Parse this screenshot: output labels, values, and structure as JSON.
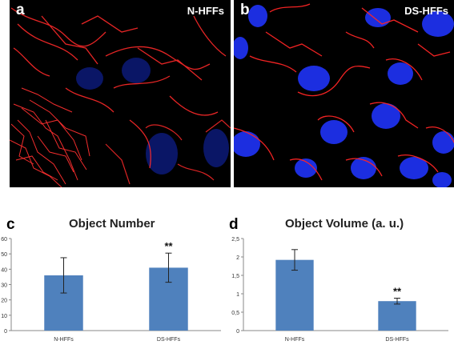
{
  "panels": [
    {
      "letter": "a",
      "label": "N-HFFs"
    },
    {
      "letter": "b",
      "label": "DS-HFFs"
    }
  ],
  "colors": {
    "bar": "#4f81bd",
    "mito": "#ff2020",
    "nucleus": "#1a2bd8"
  },
  "chart_data": [
    {
      "type": "bar",
      "panel": "c",
      "title": "Object Number",
      "categories": [
        "N-HFFs",
        "DS-HFFs"
      ],
      "values": [
        36,
        41
      ],
      "errors": [
        11.5,
        9.5
      ],
      "significance": [
        "",
        "**"
      ],
      "ylim": [
        0,
        60
      ],
      "yticks": [
        "0",
        "10",
        "20",
        "30",
        "40",
        "50",
        "60"
      ],
      "ytick_values": [
        0,
        10,
        20,
        30,
        40,
        50,
        60
      ],
      "xlabel": "",
      "ylabel": ""
    },
    {
      "type": "bar",
      "panel": "d",
      "title": "Object Volume (a. u.)",
      "categories": [
        "N-HFFs",
        "DS-HFFs"
      ],
      "values": [
        1.92,
        0.8
      ],
      "errors": [
        0.28,
        0.08
      ],
      "significance": [
        "",
        "**"
      ],
      "ylim": [
        0,
        2.5
      ],
      "yticks": [
        "0",
        "0,5",
        "1",
        "1,5",
        "2",
        "2,5"
      ],
      "ytick_values": [
        0,
        0.5,
        1,
        1.5,
        2,
        2.5
      ],
      "xlabel": "",
      "ylabel": ""
    }
  ]
}
